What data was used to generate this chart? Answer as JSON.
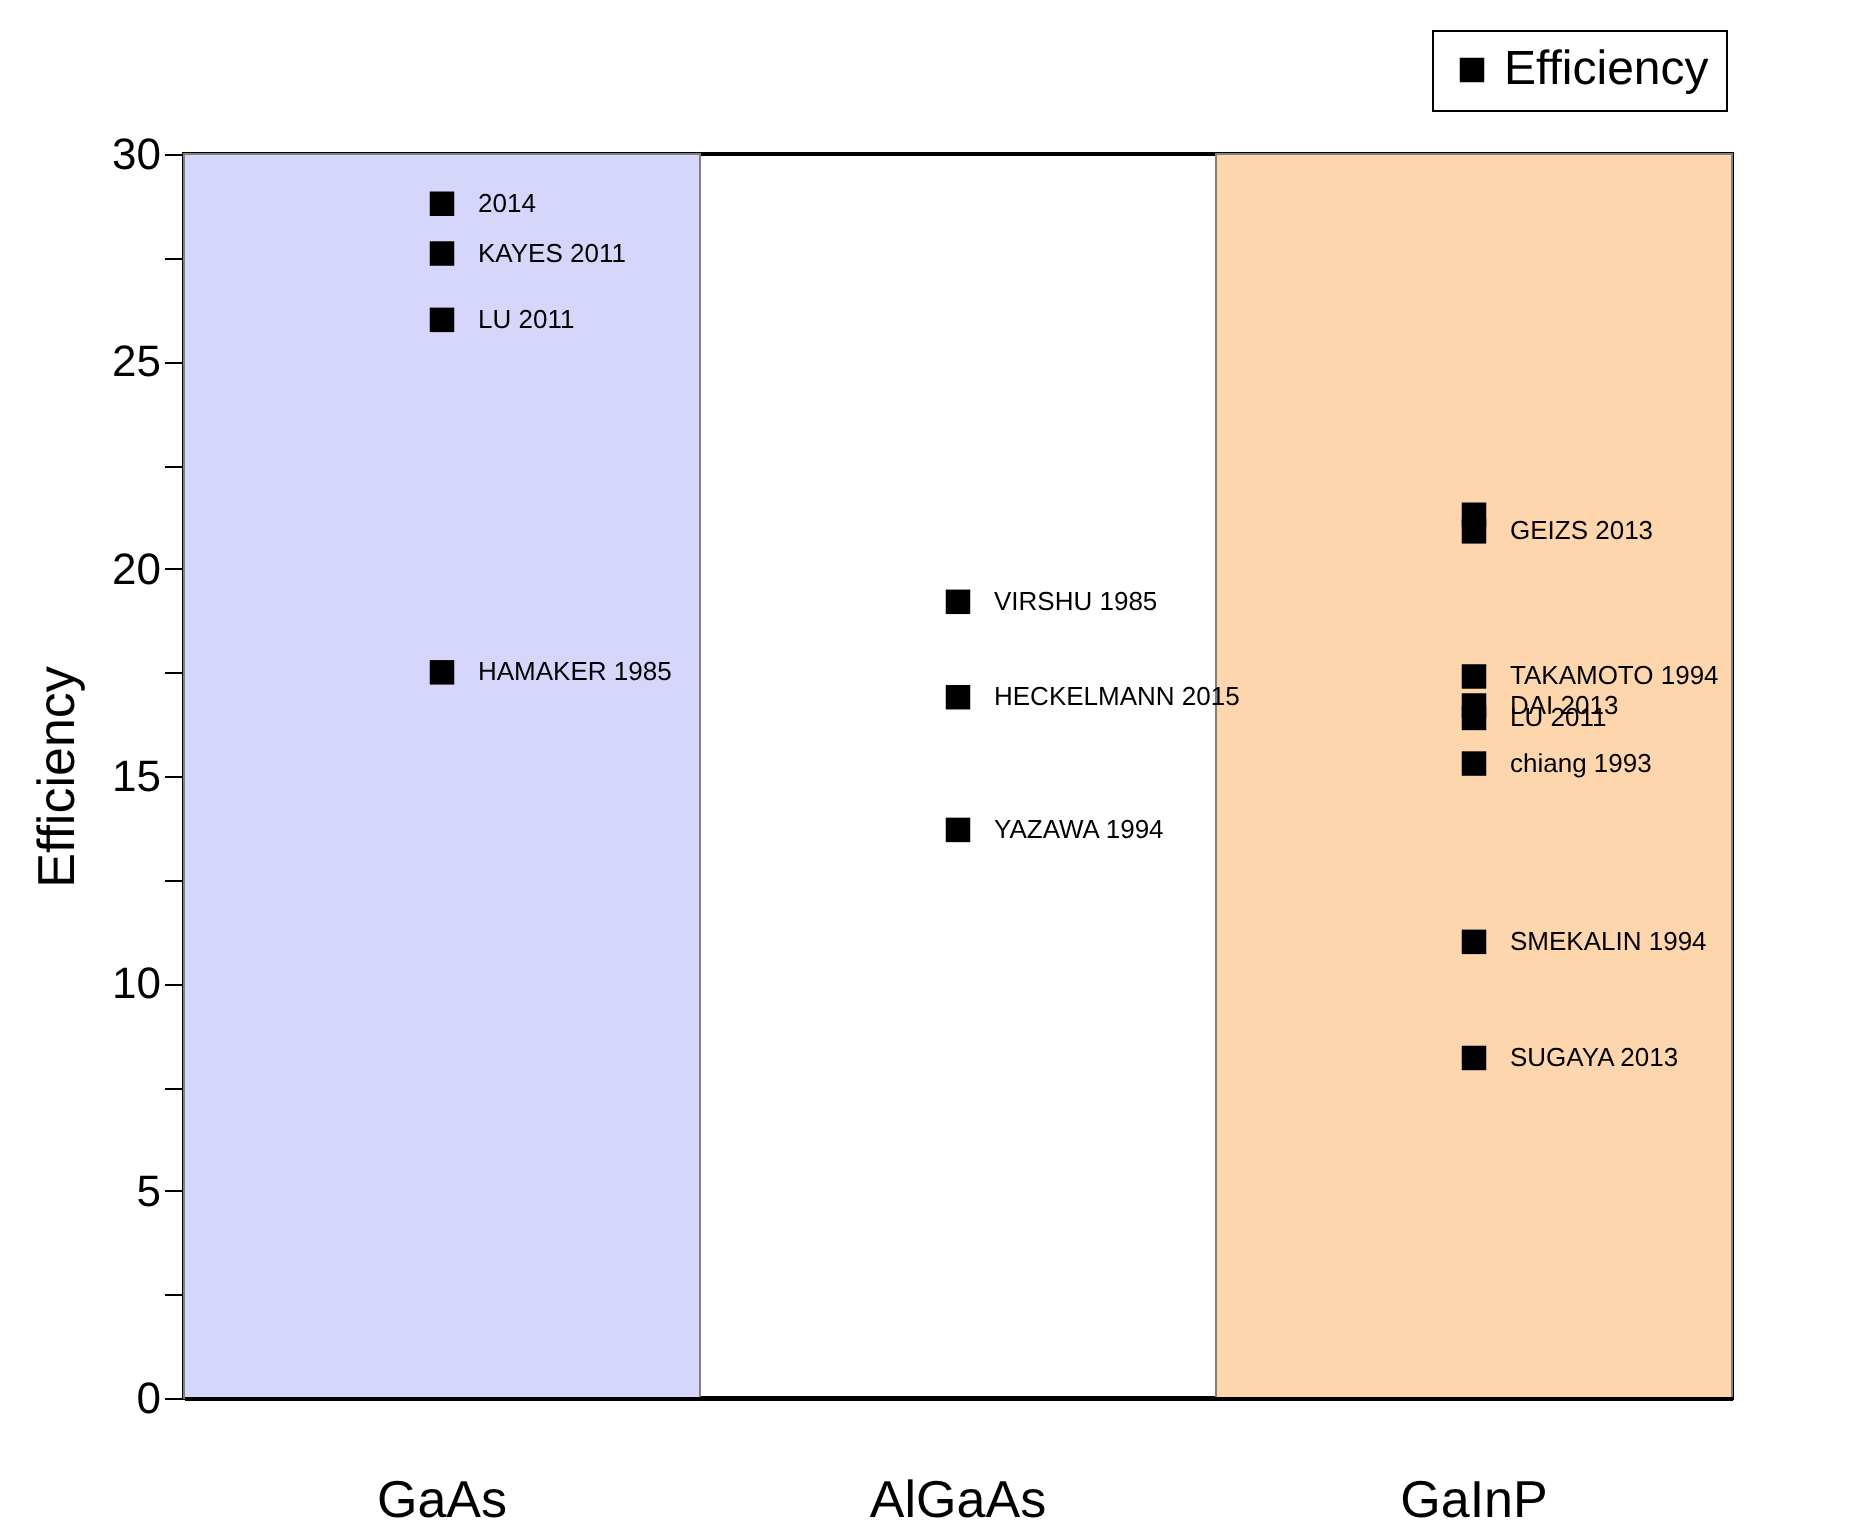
{
  "chart_data": {
    "type": "scatter",
    "ylabel": "Efficiency",
    "categories": [
      "GaAs",
      "AlGaAs",
      "GaInP"
    ],
    "series": [
      {
        "name": "Efficiency",
        "color": "#000000",
        "x": [
          "GaAs",
          "GaAs",
          "GaAs",
          "GaAs",
          "AlGaAs",
          "AlGaAs",
          "AlGaAs",
          "GaInP",
          "GaInP",
          "GaInP",
          "GaInP",
          "GaInP",
          "GaInP",
          "GaInP",
          "GaInP"
        ],
        "values": [
          28.8,
          27.6,
          26.0,
          17.5,
          19.2,
          16.9,
          13.7,
          21.3,
          20.9,
          17.4,
          16.7,
          16.4,
          15.3,
          11.0,
          8.2
        ]
      }
    ],
    "marker": "square",
    "ylim": [
      0,
      30
    ],
    "yticks": [
      0,
      {
        "value": 2.5,
        "label": null
      },
      5,
      {
        "value": 7.5,
        "label": null
      },
      10,
      {
        "value": 12.5,
        "label": null
      },
      15,
      {
        "value": 17.5,
        "label": null
      },
      20,
      {
        "value": 22.5,
        "label": null
      },
      25,
      {
        "value": 27.5,
        "label": null
      },
      30
    ],
    "bands": [
      {
        "axis": "x",
        "from": "GaAs",
        "to": "GaAs",
        "color": "#d6d6fb"
      },
      {
        "axis": "x",
        "from": "GaInP",
        "to": "GaInP",
        "color": "#fed6ae"
      }
    ],
    "annotations": [
      {
        "text": "2014",
        "x": "GaAs",
        "y": 28.8
      },
      {
        "text": "KAYES 2011",
        "x": "GaAs",
        "y": 27.6
      },
      {
        "text": "LU 2011",
        "x": "GaAs",
        "y": 26.0
      },
      {
        "text": "HAMAKER 1985",
        "x": "GaAs",
        "y": 17.5
      },
      {
        "text": "VIRSHU 1985",
        "x": "AlGaAs",
        "y": 19.2
      },
      {
        "text": "HECKELMANN 2015",
        "x": "AlGaAs",
        "y": 16.9
      },
      {
        "text": "YAZAWA 1994",
        "x": "AlGaAs",
        "y": 13.7
      },
      {
        "text": "GEIZS 2013",
        "x": "GaInP",
        "y": 20.9
      },
      {
        "text": "TAKAMOTO 1994",
        "x": "GaInP",
        "y": 17.4
      },
      {
        "text": "DAI 2013",
        "x": "GaInP",
        "y": 16.7
      },
      {
        "text": "LU 2011",
        "x": "GaInP",
        "y": 16.4
      },
      {
        "text": "chiang 1993",
        "x": "GaInP",
        "y": 15.3
      },
      {
        "text": "SMEKALIN 1994",
        "x": "GaInP",
        "y": 11.0
      },
      {
        "text": "SUGAYA 2013",
        "x": "GaInP",
        "y": 8.2
      }
    ],
    "legend": "top right",
    "grid": false
  }
}
